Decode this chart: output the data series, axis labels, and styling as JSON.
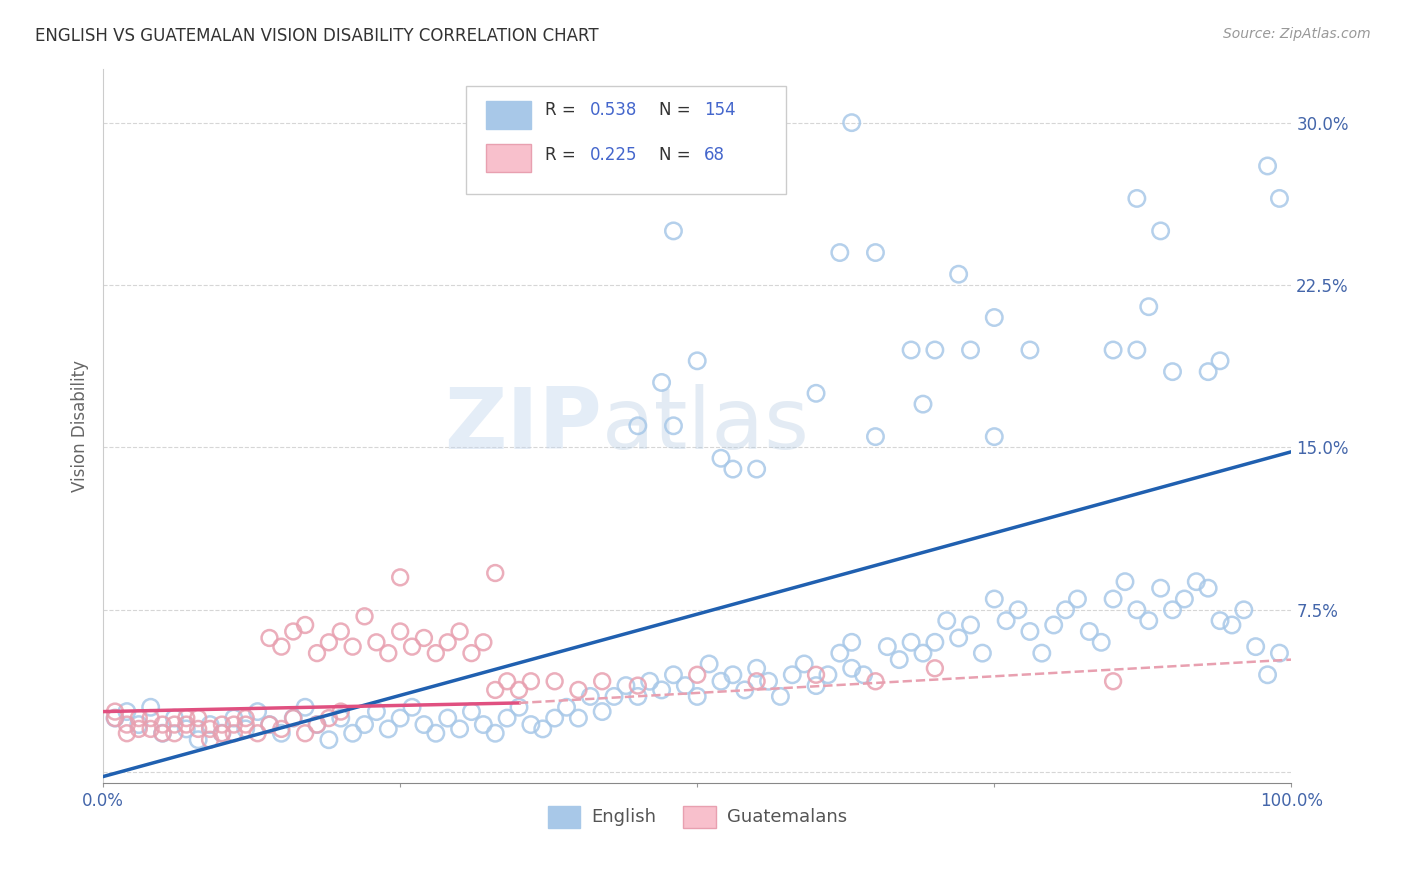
{
  "title": "ENGLISH VS GUATEMALAN VISION DISABILITY CORRELATION CHART",
  "source": "Source: ZipAtlas.com",
  "ylabel": "Vision Disability",
  "xlim": [
    0,
    1.0
  ],
  "ylim": [
    -0.005,
    0.325
  ],
  "english_color": "#a8c8e8",
  "english_edge_color": "#a0b8d8",
  "guatemalan_color": "#f8c0cc",
  "guatemalan_edge_color": "#e8a0b0",
  "english_line_color": "#2060b0",
  "guatemalan_line_color": "#e05080",
  "watermark": "ZIPatlas",
  "R_english": 0.538,
  "N_english": 154,
  "R_guatemalan": 0.225,
  "N_guatemalan": 68,
  "english_line": [
    [
      0.0,
      -0.002
    ],
    [
      1.0,
      0.148
    ]
  ],
  "guatemalan_line_solid": [
    [
      0.0,
      0.028
    ],
    [
      0.35,
      0.032
    ]
  ],
  "guatemalan_line_dash": [
    [
      0.35,
      0.032
    ],
    [
      1.0,
      0.052
    ]
  ],
  "english_scatter": [
    [
      0.01,
      0.025
    ],
    [
      0.02,
      0.028
    ],
    [
      0.03,
      0.022
    ],
    [
      0.04,
      0.03
    ],
    [
      0.05,
      0.018
    ],
    [
      0.06,
      0.025
    ],
    [
      0.07,
      0.02
    ],
    [
      0.08,
      0.015
    ],
    [
      0.09,
      0.022
    ],
    [
      0.1,
      0.018
    ],
    [
      0.11,
      0.025
    ],
    [
      0.12,
      0.02
    ],
    [
      0.13,
      0.028
    ],
    [
      0.14,
      0.022
    ],
    [
      0.15,
      0.018
    ],
    [
      0.16,
      0.025
    ],
    [
      0.17,
      0.03
    ],
    [
      0.18,
      0.022
    ],
    [
      0.19,
      0.015
    ],
    [
      0.2,
      0.025
    ],
    [
      0.21,
      0.018
    ],
    [
      0.22,
      0.022
    ],
    [
      0.23,
      0.028
    ],
    [
      0.24,
      0.02
    ],
    [
      0.25,
      0.025
    ],
    [
      0.26,
      0.03
    ],
    [
      0.27,
      0.022
    ],
    [
      0.28,
      0.018
    ],
    [
      0.29,
      0.025
    ],
    [
      0.3,
      0.02
    ],
    [
      0.31,
      0.028
    ],
    [
      0.32,
      0.022
    ],
    [
      0.33,
      0.018
    ],
    [
      0.34,
      0.025
    ],
    [
      0.35,
      0.03
    ],
    [
      0.36,
      0.022
    ],
    [
      0.37,
      0.02
    ],
    [
      0.38,
      0.025
    ],
    [
      0.39,
      0.03
    ],
    [
      0.4,
      0.025
    ],
    [
      0.41,
      0.035
    ],
    [
      0.42,
      0.028
    ],
    [
      0.43,
      0.035
    ],
    [
      0.44,
      0.04
    ],
    [
      0.45,
      0.035
    ],
    [
      0.46,
      0.042
    ],
    [
      0.47,
      0.038
    ],
    [
      0.48,
      0.045
    ],
    [
      0.49,
      0.04
    ],
    [
      0.5,
      0.035
    ],
    [
      0.51,
      0.05
    ],
    [
      0.52,
      0.042
    ],
    [
      0.53,
      0.045
    ],
    [
      0.54,
      0.038
    ],
    [
      0.55,
      0.048
    ],
    [
      0.56,
      0.042
    ],
    [
      0.57,
      0.035
    ],
    [
      0.58,
      0.045
    ],
    [
      0.59,
      0.05
    ],
    [
      0.6,
      0.04
    ],
    [
      0.61,
      0.045
    ],
    [
      0.62,
      0.055
    ],
    [
      0.63,
      0.06
    ],
    [
      0.63,
      0.048
    ],
    [
      0.64,
      0.045
    ],
    [
      0.65,
      0.155
    ],
    [
      0.66,
      0.058
    ],
    [
      0.67,
      0.052
    ],
    [
      0.68,
      0.06
    ],
    [
      0.69,
      0.055
    ],
    [
      0.7,
      0.06
    ],
    [
      0.71,
      0.07
    ],
    [
      0.72,
      0.062
    ],
    [
      0.73,
      0.068
    ],
    [
      0.74,
      0.055
    ],
    [
      0.75,
      0.08
    ],
    [
      0.76,
      0.07
    ],
    [
      0.77,
      0.075
    ],
    [
      0.78,
      0.065
    ],
    [
      0.79,
      0.055
    ],
    [
      0.8,
      0.068
    ],
    [
      0.81,
      0.075
    ],
    [
      0.82,
      0.08
    ],
    [
      0.83,
      0.065
    ],
    [
      0.84,
      0.06
    ],
    [
      0.85,
      0.08
    ],
    [
      0.86,
      0.088
    ],
    [
      0.87,
      0.075
    ],
    [
      0.88,
      0.07
    ],
    [
      0.89,
      0.085
    ],
    [
      0.9,
      0.075
    ],
    [
      0.91,
      0.08
    ],
    [
      0.92,
      0.088
    ],
    [
      0.93,
      0.085
    ],
    [
      0.94,
      0.07
    ],
    [
      0.95,
      0.068
    ],
    [
      0.96,
      0.075
    ],
    [
      0.97,
      0.058
    ],
    [
      0.98,
      0.045
    ],
    [
      0.99,
      0.055
    ],
    [
      0.45,
      0.16
    ],
    [
      0.47,
      0.18
    ],
    [
      0.5,
      0.19
    ],
    [
      0.55,
      0.14
    ],
    [
      0.6,
      0.175
    ],
    [
      0.65,
      0.24
    ],
    [
      0.7,
      0.195
    ],
    [
      0.75,
      0.21
    ],
    [
      0.48,
      0.25
    ],
    [
      0.62,
      0.24
    ],
    [
      0.72,
      0.23
    ],
    [
      0.87,
      0.195
    ],
    [
      0.48,
      0.16
    ],
    [
      0.52,
      0.145
    ],
    [
      0.53,
      0.14
    ],
    [
      0.63,
      0.3
    ],
    [
      0.98,
      0.28
    ],
    [
      0.99,
      0.265
    ],
    [
      0.85,
      0.195
    ],
    [
      0.9,
      0.185
    ],
    [
      0.87,
      0.265
    ],
    [
      0.88,
      0.215
    ],
    [
      0.89,
      0.25
    ],
    [
      0.93,
      0.185
    ],
    [
      0.94,
      0.19
    ],
    [
      0.75,
      0.155
    ],
    [
      0.78,
      0.195
    ],
    [
      0.68,
      0.195
    ],
    [
      0.69,
      0.17
    ],
    [
      0.73,
      0.195
    ]
  ],
  "guatemalan_scatter": [
    [
      0.01,
      0.028
    ],
    [
      0.02,
      0.022
    ],
    [
      0.03,
      0.025
    ],
    [
      0.04,
      0.02
    ],
    [
      0.05,
      0.018
    ],
    [
      0.06,
      0.022
    ],
    [
      0.07,
      0.025
    ],
    [
      0.08,
      0.02
    ],
    [
      0.09,
      0.015
    ],
    [
      0.1,
      0.018
    ],
    [
      0.11,
      0.022
    ],
    [
      0.12,
      0.025
    ],
    [
      0.13,
      0.018
    ],
    [
      0.14,
      0.022
    ],
    [
      0.15,
      0.02
    ],
    [
      0.16,
      0.025
    ],
    [
      0.17,
      0.018
    ],
    [
      0.18,
      0.022
    ],
    [
      0.19,
      0.025
    ],
    [
      0.2,
      0.028
    ],
    [
      0.01,
      0.025
    ],
    [
      0.02,
      0.018
    ],
    [
      0.03,
      0.02
    ],
    [
      0.04,
      0.025
    ],
    [
      0.05,
      0.022
    ],
    [
      0.06,
      0.018
    ],
    [
      0.07,
      0.022
    ],
    [
      0.08,
      0.025
    ],
    [
      0.09,
      0.02
    ],
    [
      0.1,
      0.022
    ],
    [
      0.11,
      0.018
    ],
    [
      0.12,
      0.022
    ],
    [
      0.14,
      0.062
    ],
    [
      0.15,
      0.058
    ],
    [
      0.16,
      0.065
    ],
    [
      0.17,
      0.068
    ],
    [
      0.18,
      0.055
    ],
    [
      0.19,
      0.06
    ],
    [
      0.2,
      0.065
    ],
    [
      0.21,
      0.058
    ],
    [
      0.22,
      0.072
    ],
    [
      0.23,
      0.06
    ],
    [
      0.24,
      0.055
    ],
    [
      0.25,
      0.065
    ],
    [
      0.26,
      0.058
    ],
    [
      0.27,
      0.062
    ],
    [
      0.28,
      0.055
    ],
    [
      0.29,
      0.06
    ],
    [
      0.3,
      0.065
    ],
    [
      0.31,
      0.055
    ],
    [
      0.32,
      0.06
    ],
    [
      0.25,
      0.09
    ],
    [
      0.33,
      0.038
    ],
    [
      0.34,
      0.042
    ],
    [
      0.35,
      0.038
    ],
    [
      0.36,
      0.042
    ],
    [
      0.38,
      0.042
    ],
    [
      0.4,
      0.038
    ],
    [
      0.42,
      0.042
    ],
    [
      0.45,
      0.04
    ],
    [
      0.5,
      0.045
    ],
    [
      0.55,
      0.042
    ],
    [
      0.6,
      0.045
    ],
    [
      0.65,
      0.042
    ],
    [
      0.7,
      0.048
    ],
    [
      0.85,
      0.042
    ],
    [
      0.33,
      0.092
    ]
  ]
}
